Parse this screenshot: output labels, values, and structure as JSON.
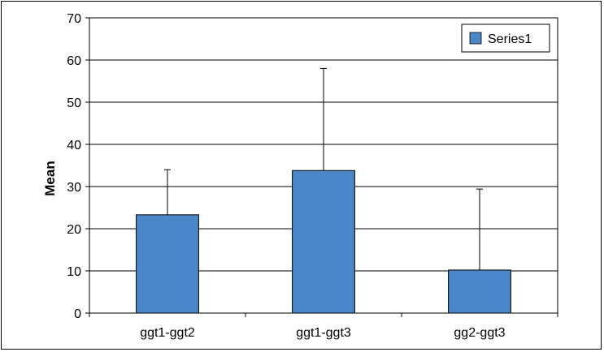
{
  "chart_data": {
    "type": "bar",
    "categories": [
      "ggt1-ggt2",
      "ggt1-ggt3",
      "gg2-ggt3"
    ],
    "series": [
      {
        "name": "Series1",
        "values": [
          23.3,
          33.8,
          10.2
        ],
        "error_plus": [
          10.7,
          24.2,
          19.2
        ],
        "color": "#4a86c8"
      }
    ],
    "title": "",
    "xlabel": "",
    "ylabel": "Mean",
    "ylim": [
      0,
      70
    ],
    "yticks": [
      0,
      10,
      20,
      30,
      40,
      50,
      60,
      70
    ],
    "grid": true,
    "legend": "top-right"
  }
}
